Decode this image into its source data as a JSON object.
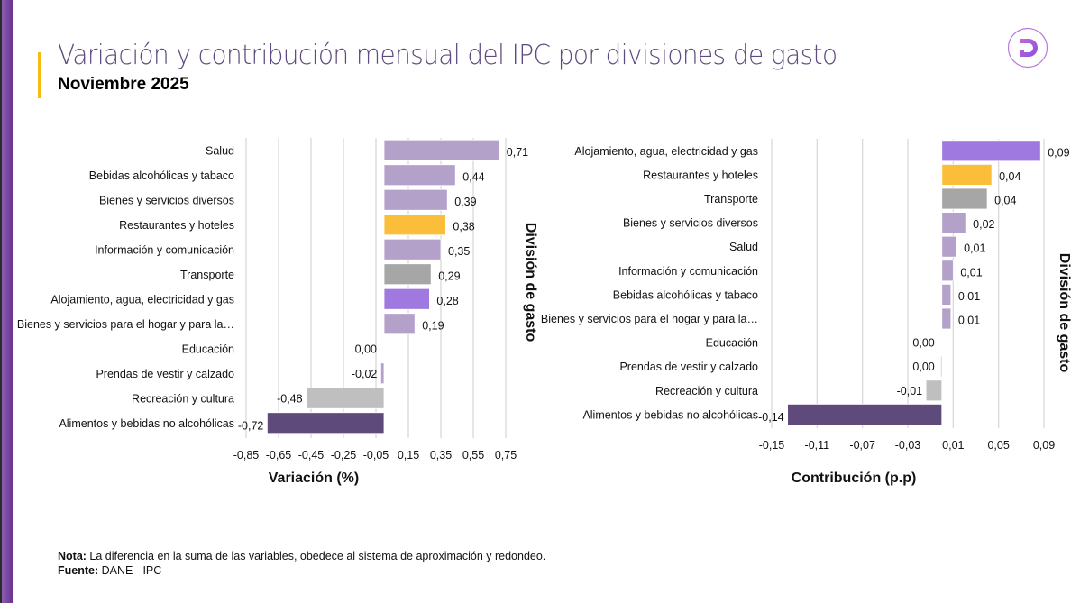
{
  "header": {
    "title": "Variación  y contribución mensual del IPC por divisiones de gasto",
    "subtitle": "Noviembre 2025",
    "logo_icon": "dane-d-logo-icon"
  },
  "colors": {
    "default": "#b3a1c9",
    "highlight_yellow": "#fbbe3b",
    "highlight_gray": "#a6a6a6",
    "highlight_purple": "#9f79e0",
    "light_gray": "#bfbfbf",
    "dark_purple": "#5e4a7b",
    "title": "#5e4a7e",
    "accent": "#f5bd13"
  },
  "chart_data": [
    {
      "type": "bar",
      "orientation": "horizontal",
      "title": "",
      "xlabel": "Variación (%)",
      "ylabel": "División de gasto",
      "xlim": [
        -0.85,
        0.75
      ],
      "xticks": [
        -0.85,
        -0.65,
        -0.45,
        -0.25,
        -0.05,
        0.15,
        0.35,
        0.55,
        0.75
      ],
      "xtick_labels": [
        "-0,85",
        "-0,65",
        "-0,45",
        "-0,25",
        "-0,05",
        "0,15",
        "0,35",
        "0,55",
        "0,75"
      ],
      "grid": true,
      "categories": [
        "Salud",
        "Bebidas alcohólicas y tabaco",
        "Bienes y servicios diversos",
        "Restaurantes y hoteles",
        "Información y comunicación",
        "Transporte",
        "Alojamiento, agua, electricidad y gas",
        "Bienes y servicios para el hogar y para la…",
        "Educación",
        "Prendas de vestir y calzado",
        "Recreación y cultura",
        "Alimentos y bebidas no alcohólicas"
      ],
      "values": [
        0.71,
        0.44,
        0.39,
        0.38,
        0.35,
        0.29,
        0.28,
        0.19,
        0.0,
        -0.02,
        -0.48,
        -0.72
      ],
      "value_labels": [
        "0,71",
        "0,44",
        "0,39",
        "0,38",
        "0,35",
        "0,29",
        "0,28",
        "0,19",
        "0,00",
        "-0,02",
        "-0,48",
        "-0,72"
      ],
      "bar_colors": [
        "default",
        "default",
        "default",
        "highlight_yellow",
        "default",
        "highlight_gray",
        "highlight_purple",
        "default",
        "default",
        "default",
        "light_gray",
        "dark_purple"
      ]
    },
    {
      "type": "bar",
      "orientation": "horizontal",
      "title": "",
      "xlabel": "Contribución (p.p)",
      "ylabel": "División de gasto",
      "xlim": [
        -0.15,
        0.09
      ],
      "xticks": [
        -0.15,
        -0.11,
        -0.07,
        -0.03,
        0.01,
        0.05,
        0.09
      ],
      "xtick_labels": [
        "-0,15",
        "-0,11",
        "-0,07",
        "-0,03",
        "0,01",
        "0,05",
        "0,09"
      ],
      "grid": true,
      "categories": [
        "Alojamiento, agua, electricidad y gas",
        "Restaurantes y hoteles",
        "Transporte",
        "Bienes y servicios diversos",
        "Salud",
        "Información y comunicación",
        "Bebidas alcohólicas y tabaco",
        "Bienes y servicios para el hogar y para la…",
        "Educación",
        "Prendas de vestir y calzado",
        "Recreación y cultura",
        "Alimentos y bebidas no alcohólicas"
      ],
      "values": [
        0.087,
        0.044,
        0.04,
        0.021,
        0.013,
        0.01,
        0.008,
        0.008,
        0.0,
        -0.001,
        -0.014,
        -0.136
      ],
      "value_labels": [
        "0,09",
        "0,04",
        "0,04",
        "0,02",
        "0,01",
        "0,01",
        "0,01",
        "0,01",
        "0,00",
        "0,00",
        "-0,01",
        "-0,14"
      ],
      "bar_colors": [
        "highlight_purple",
        "highlight_yellow",
        "highlight_gray",
        "default",
        "default",
        "default",
        "default",
        "default",
        "default",
        "default",
        "light_gray",
        "dark_purple"
      ]
    }
  ],
  "footer": {
    "note_label": "Nota:",
    "note_text": " La diferencia en la suma de las variables, obedece al sistema de aproximación y redondeo.",
    "source_label": "Fuente:",
    "source_text": " DANE - IPC"
  }
}
